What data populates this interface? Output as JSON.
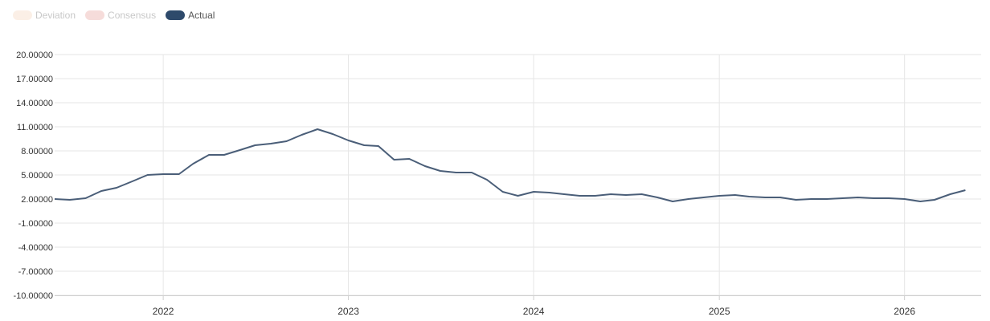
{
  "legend": {
    "items": [
      {
        "label": "Deviation",
        "swatch_color": "#fbefe6",
        "text_color": "#c8c8c8"
      },
      {
        "label": "Consensus",
        "swatch_color": "#f6dcda",
        "text_color": "#c8c8c8"
      },
      {
        "label": "Actual",
        "swatch_color": "#2e4a6b",
        "text_color": "#555555"
      }
    ]
  },
  "colors": {
    "line": "#4a5e78",
    "grid": "#e6e6e6",
    "axis": "#cfcfcf",
    "tick_text": "#333333"
  },
  "chart_data": {
    "type": "line",
    "title": "",
    "xlabel": "",
    "ylabel": "",
    "ylim": [
      -10,
      20
    ],
    "y_ticks": [
      20,
      17,
      14,
      11,
      8,
      5,
      2,
      -1,
      -4,
      -7,
      -10
    ],
    "y_tick_labels": [
      "20.00000",
      "17.00000",
      "14.00000",
      "11.00000",
      "8.00000",
      "5.00000",
      "2.00000",
      "-1.00000",
      "-4.00000",
      "-7.00000",
      "-10.00000"
    ],
    "xlim": [
      "2021-06-01",
      "2026-06-01"
    ],
    "x_ticks": [
      "2022-01-01",
      "2023-01-01",
      "2024-01-01",
      "2025-01-01",
      "2026-01-01"
    ],
    "x_tick_labels": [
      "2022",
      "2023",
      "2024",
      "2025",
      "2026"
    ],
    "grid": true,
    "legend_position": "top-left",
    "series": [
      {
        "name": "Actual",
        "x": [
          "2021-06-01",
          "2021-07-01",
          "2021-08-01",
          "2021-09-01",
          "2021-10-01",
          "2021-11-01",
          "2021-12-01",
          "2022-01-01",
          "2022-02-01",
          "2022-03-01",
          "2022-04-01",
          "2022-05-01",
          "2022-06-01",
          "2022-07-01",
          "2022-08-01",
          "2022-09-01",
          "2022-10-01",
          "2022-11-01",
          "2022-12-01",
          "2023-01-01",
          "2023-02-01",
          "2023-03-01",
          "2023-04-01",
          "2023-05-01",
          "2023-06-01",
          "2023-07-01",
          "2023-08-01",
          "2023-09-01",
          "2023-10-01",
          "2023-11-01",
          "2023-12-01",
          "2024-01-01",
          "2024-02-01",
          "2024-03-01",
          "2024-04-01",
          "2024-05-01",
          "2024-06-01",
          "2024-07-01",
          "2024-08-01",
          "2024-09-01",
          "2024-10-01",
          "2024-11-01",
          "2024-12-01",
          "2025-01-01",
          "2025-02-01",
          "2025-03-01",
          "2025-04-01",
          "2025-05-01",
          "2025-06-01",
          "2025-07-01",
          "2025-08-01",
          "2025-09-01",
          "2025-10-01",
          "2025-11-01",
          "2025-12-01",
          "2026-01-01",
          "2026-02-01",
          "2026-03-01",
          "2026-04-01",
          "2026-05-01"
        ],
        "values": [
          2.0,
          1.9,
          2.1,
          3.0,
          3.4,
          4.2,
          5.0,
          5.1,
          5.1,
          6.4,
          7.5,
          7.5,
          8.1,
          8.7,
          8.9,
          9.2,
          10.0,
          10.7,
          10.1,
          9.3,
          8.7,
          8.6,
          6.9,
          7.0,
          6.1,
          5.5,
          5.3,
          5.3,
          4.4,
          2.9,
          2.4,
          2.9,
          2.8,
          2.6,
          2.4,
          2.4,
          2.6,
          2.5,
          2.6,
          2.2,
          1.7,
          2.0,
          2.2,
          2.4,
          2.5,
          2.3,
          2.2,
          2.2,
          1.9,
          2.0,
          2.0,
          2.1,
          2.2,
          2.1,
          2.1,
          2.0,
          1.7,
          1.9,
          2.6,
          3.1
        ]
      }
    ]
  }
}
